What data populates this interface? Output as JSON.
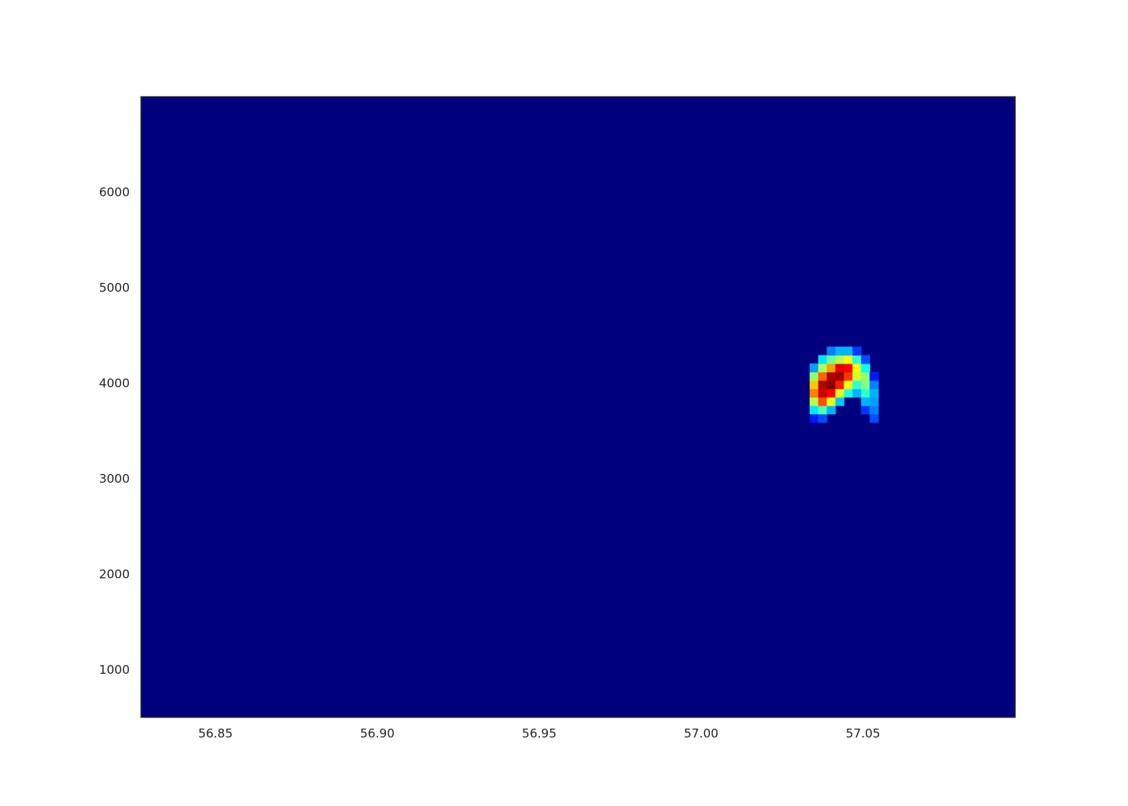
{
  "chart_data": {
    "type": "heatmap",
    "title": "",
    "xlabel": "",
    "ylabel": "",
    "xlim": [
      56.827,
      57.097
    ],
    "ylim": [
      500,
      7000
    ],
    "x_ticks": [
      "56.85",
      "56.90",
      "56.95",
      "57.00",
      "57.05"
    ],
    "x_tick_values": [
      56.85,
      56.9,
      56.95,
      57.0,
      57.05
    ],
    "y_ticks": [
      "1000",
      "2000",
      "3000",
      "4000",
      "5000",
      "6000"
    ],
    "y_tick_values": [
      1000,
      2000,
      3000,
      4000,
      5000,
      6000
    ],
    "colormap": "jet",
    "background_color": "#00007f",
    "grid": false,
    "bin_x_origin": 57.0335,
    "bin_dx": 0.00265,
    "bin_y_origin": 3590,
    "bin_dy": 88,
    "bins": [
      [
        0,
        0,
        0.15
      ],
      [
        0,
        1,
        0.35
      ],
      [
        0,
        2,
        0.55
      ],
      [
        0,
        3,
        0.75
      ],
      [
        0,
        4,
        0.68
      ],
      [
        0,
        5,
        0.52
      ],
      [
        0,
        6,
        0.28
      ],
      [
        1,
        0,
        0.2
      ],
      [
        1,
        1,
        0.45
      ],
      [
        1,
        2,
        0.8
      ],
      [
        1,
        3,
        0.92
      ],
      [
        1,
        4,
        0.95
      ],
      [
        1,
        5,
        0.78
      ],
      [
        1,
        6,
        0.55
      ],
      [
        1,
        7,
        0.35
      ],
      [
        2,
        1,
        0.3
      ],
      [
        2,
        2,
        0.6
      ],
      [
        2,
        3,
        0.88
      ],
      [
        2,
        4,
        1.0
      ],
      [
        2,
        5,
        0.95
      ],
      [
        2,
        6,
        0.72
      ],
      [
        2,
        7,
        0.48
      ],
      [
        2,
        8,
        0.25
      ],
      [
        3,
        2,
        0.32
      ],
      [
        3,
        3,
        0.6
      ],
      [
        3,
        4,
        0.85
      ],
      [
        3,
        5,
        0.97
      ],
      [
        3,
        6,
        0.9
      ],
      [
        3,
        7,
        0.55
      ],
      [
        3,
        8,
        0.3
      ],
      [
        4,
        3,
        0.4
      ],
      [
        4,
        4,
        0.62
      ],
      [
        4,
        5,
        0.82
      ],
      [
        4,
        6,
        0.88
      ],
      [
        4,
        7,
        0.62
      ],
      [
        4,
        8,
        0.3
      ],
      [
        5,
        3,
        0.3
      ],
      [
        5,
        4,
        0.42
      ],
      [
        5,
        5,
        0.58
      ],
      [
        5,
        6,
        0.62
      ],
      [
        5,
        7,
        0.42
      ],
      [
        5,
        8,
        0.18
      ],
      [
        6,
        1,
        0.18
      ],
      [
        6,
        2,
        0.3
      ],
      [
        6,
        3,
        0.42
      ],
      [
        6,
        4,
        0.5
      ],
      [
        6,
        5,
        0.52
      ],
      [
        6,
        6,
        0.38
      ],
      [
        6,
        7,
        0.2
      ],
      [
        7,
        0,
        0.2
      ],
      [
        7,
        1,
        0.25
      ],
      [
        7,
        2,
        0.28
      ],
      [
        7,
        3,
        0.3
      ],
      [
        7,
        4,
        0.25
      ],
      [
        7,
        5,
        0.15
      ]
    ]
  }
}
